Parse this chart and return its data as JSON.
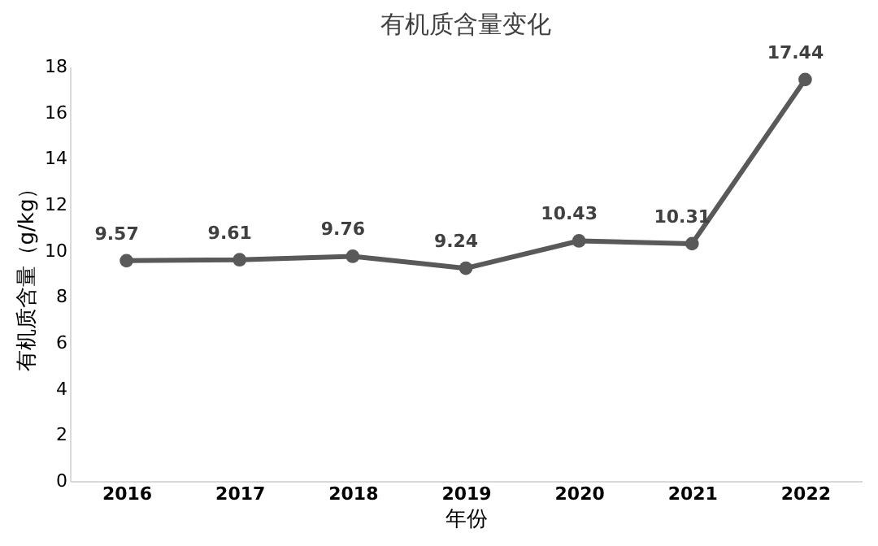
{
  "chart_data": {
    "type": "line",
    "title": "有机质含量变化",
    "xlabel": "年份",
    "ylabel": "有机质含量（g/kg）",
    "categories": [
      "2016",
      "2017",
      "2018",
      "2019",
      "2020",
      "2021",
      "2022"
    ],
    "series": [
      {
        "color": "#595959",
        "values": [
          9.57,
          9.61,
          9.76,
          9.24,
          10.43,
          10.31,
          17.44
        ]
      }
    ],
    "ylim": [
      0,
      18
    ],
    "yticks": [
      0,
      2,
      4,
      6,
      8,
      10,
      12,
      14,
      16,
      18
    ],
    "grid": false,
    "legend": false,
    "marker": "circle",
    "line_style": "solid",
    "data_labels": true
  }
}
